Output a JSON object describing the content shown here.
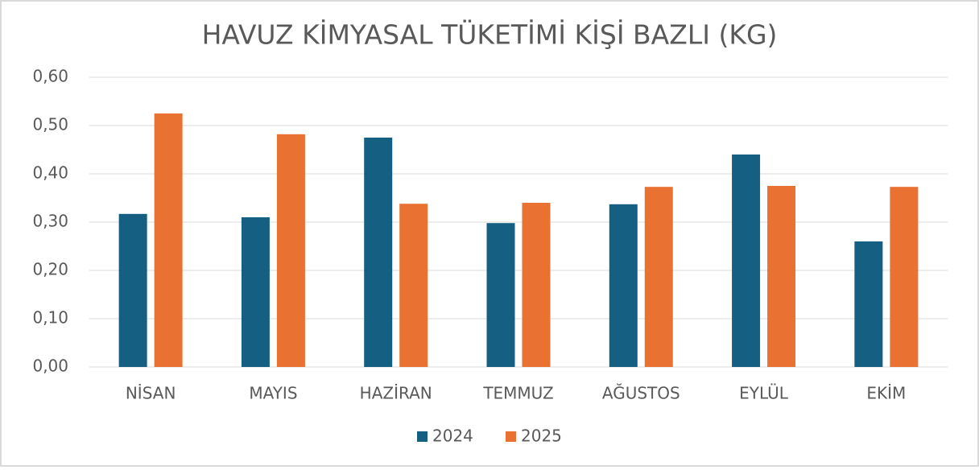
{
  "chart_data": {
    "type": "bar",
    "title": "HAVUZ KİMYASAL TÜKETİMİ KİŞİ BAZLI (KG)",
    "categories": [
      "NİSAN",
      "MAYIS",
      "HAZİRAN",
      "TEMMUZ",
      "AĞUSTOS",
      "EYLÜL",
      "EKİM"
    ],
    "series": [
      {
        "name": "2024",
        "color": "#156082",
        "values": [
          0.317,
          0.31,
          0.475,
          0.298,
          0.337,
          0.44,
          0.26
        ]
      },
      {
        "name": "2025",
        "color": "#e97132",
        "values": [
          0.525,
          0.482,
          0.338,
          0.34,
          0.373,
          0.375,
          0.373
        ]
      }
    ],
    "ylim": [
      0,
      0.6
    ],
    "yticks": [
      {
        "value": 0,
        "label": "0,00"
      },
      {
        "value": 0.1,
        "label": "0,10"
      },
      {
        "value": 0.2,
        "label": "0,20"
      },
      {
        "value": 0.3,
        "label": "0,30"
      },
      {
        "value": 0.4,
        "label": "0,40"
      },
      {
        "value": 0.5,
        "label": "0,50"
      },
      {
        "value": 0.6,
        "label": "0,60"
      }
    ],
    "grid": true,
    "legend": "bottom"
  }
}
